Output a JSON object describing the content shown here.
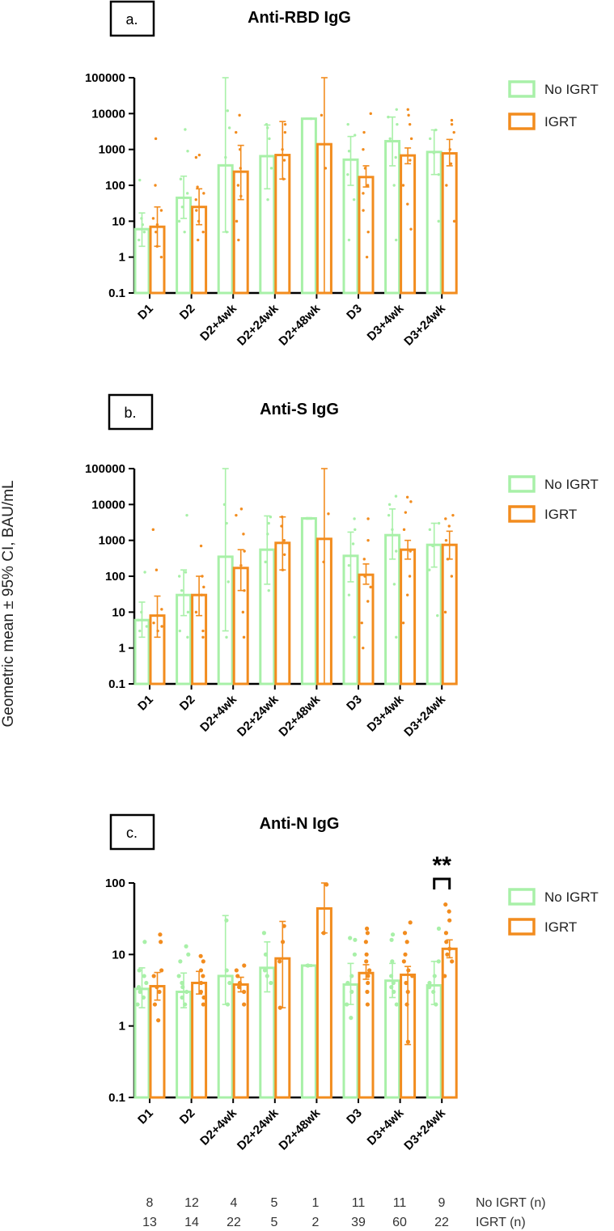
{
  "y_axis_label": "Geometric mean ± 95% CI, BAU/mL",
  "colors": {
    "no_igrt": "#A8F0A8",
    "igrt": "#F28C1E",
    "axis": "#000000"
  },
  "legend": {
    "series": [
      "No IGRT",
      "IGRT"
    ]
  },
  "chart_data": [
    {
      "type": "bar",
      "panel_label": "a.",
      "title": "Anti-RBD IgG",
      "yscale": "log",
      "ylim": [
        0.1,
        100000
      ],
      "yticks": [
        "0.1",
        "1",
        "10",
        "100",
        "1000",
        "10000",
        "100000"
      ],
      "categories": [
        "D1",
        "D2",
        "D2+4wk",
        "D2+24wk",
        "D2+48wk",
        "D3",
        "D3+4wk",
        "D3+24wk"
      ],
      "series": [
        {
          "name": "No IGRT",
          "values": [
            6,
            45,
            360,
            650,
            7200,
            520,
            1700,
            850
          ],
          "ci_low": [
            2,
            12,
            5,
            80,
            7000,
            100,
            350,
            200
          ],
          "ci_high": [
            17,
            180,
            100000,
            4800,
            7400,
            2300,
            8000,
            3500
          ],
          "points": [
            [
              3,
              5,
              8,
              12,
              140
            ],
            [
              5,
              10,
              25,
              60,
              150,
              900,
              3600
            ],
            [
              5,
              600,
              4000,
              12000
            ],
            [
              40,
              300,
              2000,
              4000,
              5000
            ],
            [
              7200
            ],
            [
              3,
              40,
              200,
              900,
              2500,
              5000
            ],
            [
              3,
              100,
              600,
              2000,
              5000,
              8000,
              13000
            ],
            [
              10,
              200,
              800,
              2000,
              3500
            ]
          ]
        },
        {
          "name": "IGRT",
          "values": [
            7,
            25,
            240,
            700,
            1400,
            170,
            680,
            780
          ],
          "ci_low": [
            2,
            8,
            40,
            150,
            0.1,
            90,
            400,
            350
          ],
          "ci_high": [
            25,
            80,
            1300,
            6000,
            100000,
            350,
            1100,
            1900
          ],
          "points": [
            [
              1,
              2,
              5,
              8,
              12,
              20,
              100,
              2000
            ],
            [
              3,
              5,
              10,
              20,
              40,
              60,
              90,
              600,
              700
            ],
            [
              3,
              10,
              50,
              100,
              300,
              1000,
              3000,
              9000
            ],
            [
              150,
              500,
              1000,
              3000,
              5000
            ],
            [
              300,
              9000
            ],
            [
              1,
              5,
              20,
              60,
              100,
              300,
              1000,
              3000,
              10000
            ],
            [
              6,
              30,
              100,
              500,
              2000,
              5000,
              9000,
              13000
            ],
            [
              10,
              100,
              400,
              1000,
              3000,
              5000,
              6500
            ]
          ]
        }
      ]
    },
    {
      "type": "bar",
      "panel_label": "b.",
      "title": "Anti-S IgG",
      "yscale": "log",
      "ylim": [
        0.1,
        100000
      ],
      "yticks": [
        "0.1",
        "1",
        "10",
        "100",
        "1000",
        "10000",
        "100000"
      ],
      "categories": [
        "D1",
        "D2",
        "D2+4wk",
        "D2+24wk",
        "D2+48wk",
        "D3",
        "D3+4wk",
        "D3+24wk"
      ],
      "series": [
        {
          "name": "No IGRT",
          "values": [
            6,
            30,
            350,
            550,
            4100,
            370,
            1400,
            750
          ],
          "ci_low": [
            2,
            8,
            3,
            60,
            3900,
            70,
            300,
            180
          ],
          "ci_high": [
            19,
            150,
            100000,
            4800,
            4300,
            1700,
            7500,
            3000
          ],
          "points": [
            [
              3,
              4,
              6,
              10,
              130
            ],
            [
              2,
              3,
              10,
              40,
              100,
              130,
              5000
            ],
            [
              2,
              70,
              3000,
              10000
            ],
            [
              40,
              250,
              1500,
              3000,
              4500
            ],
            [
              4100
            ],
            [
              2,
              30,
              200,
              800,
              2000,
              4000
            ],
            [
              2,
              60,
              500,
              2000,
              5000,
              10000,
              17000
            ],
            [
              8,
              150,
              700,
              2000,
              3000
            ]
          ]
        },
        {
          "name": "IGRT",
          "values": [
            8,
            30,
            170,
            850,
            1100,
            110,
            550,
            750
          ],
          "ci_low": [
            2,
            8,
            40,
            150,
            0.1,
            60,
            300,
            300
          ],
          "ci_high": [
            28,
            100,
            550,
            4500,
            100000,
            220,
            1000,
            1800
          ],
          "points": [
            [
              3,
              4,
              5,
              8,
              12,
              150,
              2000
            ],
            [
              2,
              3,
              10,
              30,
              50,
              100,
              700
            ],
            [
              2,
              10,
              40,
              200,
              500,
              1500,
              5000,
              7500
            ],
            [
              150,
              400,
              1000,
              2500,
              4500
            ],
            [
              250,
              5500
            ],
            [
              1,
              5,
              20,
              50,
              100,
              300,
              1000,
              4000
            ],
            [
              5,
              30,
              100,
              500,
              2000,
              6000,
              12000,
              16000
            ],
            [
              10,
              100,
              300,
              1000,
              2500,
              4000,
              5000
            ]
          ]
        }
      ]
    },
    {
      "type": "bar",
      "panel_label": "c.",
      "title": "Anti-N IgG",
      "yscale": "log",
      "ylim": [
        0.1,
        100
      ],
      "yticks": [
        "0.1",
        "1",
        "10",
        "100"
      ],
      "categories": [
        "D1",
        "D2",
        "D2+4wk",
        "D2+24wk",
        "D2+48wk",
        "D3",
        "D3+4wk",
        "D3+24wk"
      ],
      "series": [
        {
          "name": "No IGRT",
          "values": [
            3.3,
            3.0,
            5.0,
            6.5,
            7.0,
            3.8,
            4.3,
            3.7
          ],
          "ci_low": [
            1.8,
            1.8,
            2.0,
            3.0,
            6.8,
            2.0,
            2.5,
            2.0
          ],
          "ci_high": [
            6.5,
            5.5,
            35,
            15,
            7.2,
            7.5,
            7.5,
            8.0
          ],
          "points": [
            [
              2,
              2.5,
              3,
              3.5,
              4,
              5,
              6,
              15
            ],
            [
              2,
              2.5,
              3,
              3.5,
              4,
              5,
              8,
              10,
              13
            ],
            [
              2,
              4,
              6,
              30
            ],
            [
              4,
              5,
              6,
              10,
              20
            ],
            [
              7
            ],
            [
              1.3,
              2,
              3,
              4,
              5,
              10,
              16,
              17
            ],
            [
              2,
              3,
              3.5,
              4,
              5,
              8,
              16,
              19
            ],
            [
              2,
              3,
              3.5,
              4,
              5,
              8,
              23
            ]
          ]
        },
        {
          "name": "IGRT",
          "values": [
            3.6,
            4.0,
            3.8,
            8.8,
            44,
            5.5,
            5.2,
            12
          ],
          "ci_low": [
            2.3,
            2.8,
            3.0,
            1.8,
            20,
            4.5,
            0.55,
            9
          ],
          "ci_high": [
            5.6,
            5.8,
            4.8,
            29,
            100,
            7.2,
            6.8,
            16
          ],
          "points": [
            [
              1.2,
              2,
              3,
              3.5,
              5,
              6,
              15,
              19
            ],
            [
              2,
              2.5,
              3,
              4,
              5,
              6,
              8,
              9.5
            ],
            [
              2,
              3,
              3.5,
              4,
              5,
              6,
              7
            ],
            [
              1.8,
              8,
              15,
              25
            ],
            [
              20,
              95
            ],
            [
              2,
              3,
              4,
              5,
              6,
              8,
              10,
              15,
              20,
              23
            ],
            [
              0.6,
              2,
              3,
              4,
              5,
              6,
              8,
              10,
              15,
              20,
              28
            ],
            [
              5,
              8,
              10,
              12,
              15,
              20,
              30,
              40,
              50
            ]
          ]
        }
      ],
      "significance": {
        "label": "**",
        "category": "D3+24wk"
      }
    }
  ],
  "n_table": {
    "rows": [
      {
        "label": "No IGRT (n)",
        "values": [
          "8",
          "12",
          "4",
          "5",
          "1",
          "11",
          "11",
          "9"
        ]
      },
      {
        "label": "IGRT (n)",
        "values": [
          "13",
          "14",
          "22",
          "5",
          "2",
          "39",
          "60",
          "22"
        ]
      }
    ]
  }
}
